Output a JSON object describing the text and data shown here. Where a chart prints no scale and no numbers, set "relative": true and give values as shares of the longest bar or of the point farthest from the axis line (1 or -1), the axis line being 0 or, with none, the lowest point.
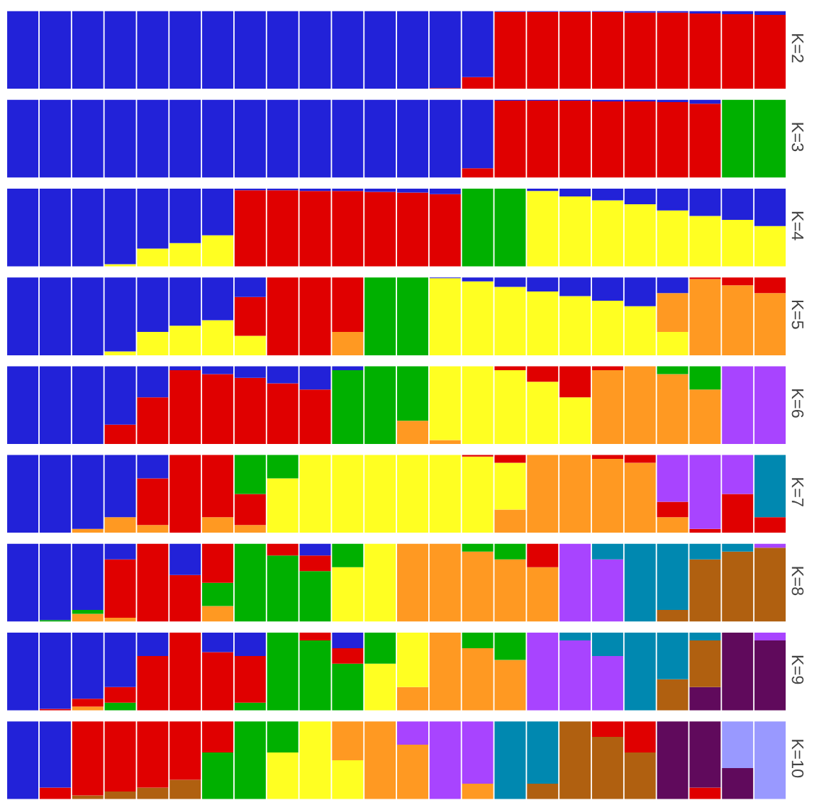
{
  "chart_data": [
    {
      "type": "bar",
      "stacked": true,
      "relative": true,
      "ylabel": "K=2",
      "categories": [
        null,
        null,
        null,
        null,
        null,
        null,
        null,
        null,
        null,
        null,
        null,
        null,
        null,
        null,
        null,
        null,
        null,
        null,
        null,
        null,
        null,
        null,
        null,
        null
      ],
      "series": [
        {
          "color": "#e00000",
          "values": [
            0,
            0,
            0,
            0,
            0,
            0,
            0,
            0,
            0,
            0,
            0,
            0,
            0,
            0.01,
            0.15,
            0.99,
            0.99,
            0.99,
            0.99,
            0.98,
            0.98,
            0.97,
            0.96,
            0.95
          ]
        },
        {
          "color": "#2222d8",
          "values": [
            1,
            1,
            1,
            1,
            1,
            1,
            1,
            1,
            1,
            1,
            1,
            1,
            1,
            0.99,
            0.85,
            0.01,
            0.01,
            0.01,
            0.01,
            0.02,
            0.02,
            0.03,
            0.04,
            0.05
          ]
        }
      ]
    },
    {
      "type": "bar",
      "stacked": true,
      "relative": true,
      "ylabel": "K=3",
      "categories": [
        null,
        null,
        null,
        null,
        null,
        null,
        null,
        null,
        null,
        null,
        null,
        null,
        null,
        null,
        null,
        null,
        null,
        null,
        null,
        null,
        null,
        null,
        null,
        null
      ],
      "series": [
        {
          "color": "#e00000",
          "values": [
            0,
            0,
            0,
            0,
            0,
            0,
            0,
            0,
            0,
            0,
            0,
            0,
            0,
            0,
            0.12,
            0.99,
            0.99,
            0.99,
            0.98,
            0.98,
            0.97,
            0.95,
            0,
            0
          ]
        },
        {
          "color": "#00b000",
          "values": [
            0,
            0,
            0,
            0,
            0,
            0,
            0,
            0,
            0,
            0,
            0,
            0,
            0,
            0,
            0,
            0,
            0,
            0,
            0,
            0,
            0,
            0,
            1,
            1
          ]
        },
        {
          "color": "#2222d8",
          "values": [
            1,
            1,
            1,
            1,
            1,
            1,
            1,
            1,
            1,
            1,
            1,
            1,
            1,
            1,
            0.88,
            0.01,
            0.01,
            0.01,
            0.02,
            0.02,
            0.03,
            0.05,
            0,
            0
          ]
        }
      ]
    },
    {
      "type": "bar",
      "stacked": true,
      "relative": true,
      "ylabel": "K=4",
      "categories": [
        null,
        null,
        null,
        null,
        null,
        null,
        null,
        null,
        null,
        null,
        null,
        null,
        null,
        null,
        null,
        null,
        null,
        null,
        null,
        null,
        null,
        null,
        null,
        null
      ],
      "series": [
        {
          "color": "#ffff22",
          "values": [
            0,
            0,
            0,
            0.03,
            0.23,
            0.3,
            0.4,
            0,
            0,
            0,
            0,
            0,
            0,
            0,
            0,
            0,
            0.97,
            0.9,
            0.85,
            0.8,
            0.72,
            0.65,
            0.6,
            0.52
          ]
        },
        {
          "color": "#e00000",
          "values": [
            0,
            0,
            0,
            0,
            0,
            0,
            0,
            0.98,
            0.98,
            0.97,
            0.97,
            0.96,
            0.95,
            0.93,
            0,
            0,
            0,
            0,
            0,
            0,
            0,
            0,
            0,
            0
          ]
        },
        {
          "color": "#00b000",
          "values": [
            0,
            0,
            0,
            0,
            0,
            0,
            0,
            0,
            0,
            0,
            0,
            0,
            0,
            0,
            1,
            1,
            0,
            0,
            0,
            0,
            0,
            0,
            0,
            0
          ]
        },
        {
          "color": "#2222d8",
          "values": [
            1,
            1,
            1,
            0.97,
            0.77,
            0.7,
            0.6,
            0.02,
            0.02,
            0.03,
            0.03,
            0.04,
            0.05,
            0.07,
            0,
            0,
            0.03,
            0.1,
            0.15,
            0.2,
            0.28,
            0.35,
            0.4,
            0.48
          ]
        }
      ]
    },
    {
      "type": "bar",
      "stacked": true,
      "relative": true,
      "ylabel": "K=5",
      "categories": [
        null,
        null,
        null,
        null,
        null,
        null,
        null,
        null,
        null,
        null,
        null,
        null,
        null,
        null,
        null,
        null,
        null,
        null,
        null,
        null,
        null,
        null,
        null,
        null
      ],
      "series": [
        {
          "color": "#ffff22",
          "values": [
            0,
            0,
            0,
            0.05,
            0.3,
            0.38,
            0.45,
            0.25,
            0,
            0,
            0,
            0,
            0,
            0.99,
            0.95,
            0.88,
            0.82,
            0.76,
            0.7,
            0.63,
            0.3,
            0,
            0,
            0
          ]
        },
        {
          "color": "#ff9922",
          "values": [
            0,
            0,
            0,
            0,
            0,
            0,
            0,
            0,
            0,
            0,
            0.3,
            0,
            0,
            0,
            0,
            0,
            0,
            0,
            0,
            0,
            0.5,
            0.98,
            0.9,
            0.8
          ]
        },
        {
          "color": "#e00000",
          "values": [
            0,
            0,
            0,
            0,
            0,
            0,
            0,
            0.5,
            1,
            1,
            0.7,
            0,
            0,
            0,
            0,
            0,
            0,
            0,
            0,
            0,
            0,
            0.02,
            0.1,
            0.2
          ]
        },
        {
          "color": "#00b000",
          "values": [
            0,
            0,
            0,
            0,
            0,
            0,
            0,
            0,
            0,
            0,
            0,
            1,
            1,
            0,
            0,
            0,
            0,
            0,
            0,
            0,
            0,
            0,
            0,
            0
          ]
        },
        {
          "color": "#2222d8",
          "values": [
            1,
            1,
            1,
            0.95,
            0.7,
            0.62,
            0.55,
            0.25,
            0,
            0,
            0,
            0,
            0,
            0.01,
            0.05,
            0.12,
            0.18,
            0.24,
            0.3,
            0.37,
            0.2,
            0,
            0,
            0
          ]
        }
      ]
    },
    {
      "type": "bar",
      "stacked": true,
      "relative": true,
      "ylabel": "K=6",
      "categories": [
        null,
        null,
        null,
        null,
        null,
        null,
        null,
        null,
        null,
        null,
        null,
        null,
        null,
        null,
        null,
        null,
        null,
        null,
        null,
        null,
        null,
        null,
        null,
        null
      ],
      "series": [
        {
          "color": "#ff9922",
          "values": [
            0,
            0,
            0,
            0,
            0,
            0,
            0,
            0,
            0,
            0,
            0,
            0,
            0.3,
            0.05,
            0,
            0,
            0,
            0,
            0.95,
            1,
            0.9,
            0.7,
            0,
            0
          ]
        },
        {
          "color": "#ffff22",
          "values": [
            0,
            0,
            0,
            0,
            0,
            0,
            0,
            0,
            0,
            0,
            0,
            0,
            0,
            0.95,
            1,
            0.95,
            0.8,
            0.6,
            0,
            0,
            0,
            0,
            0,
            0
          ]
        },
        {
          "color": "#e00000",
          "values": [
            0,
            0,
            0,
            0.25,
            0.6,
            0.95,
            0.9,
            0.85,
            0.78,
            0.7,
            0,
            0,
            0,
            0,
            0,
            0.05,
            0.2,
            0.4,
            0.05,
            0,
            0,
            0,
            0,
            0
          ]
        },
        {
          "color": "#00b000",
          "values": [
            0,
            0,
            0,
            0,
            0,
            0,
            0,
            0,
            0,
            0,
            0.95,
            1,
            0.7,
            0,
            0,
            0,
            0,
            0,
            0,
            0,
            0.1,
            0.3,
            0,
            0
          ]
        },
        {
          "color": "#a844ff",
          "values": [
            0,
            0,
            0,
            0,
            0,
            0,
            0,
            0,
            0,
            0,
            0,
            0,
            0,
            0,
            0,
            0,
            0,
            0,
            0,
            0,
            0,
            0,
            1,
            1
          ]
        },
        {
          "color": "#2222d8",
          "values": [
            1,
            1,
            1,
            0.75,
            0.4,
            0.05,
            0.1,
            0.15,
            0.22,
            0.3,
            0.05,
            0,
            0,
            0,
            0,
            0,
            0,
            0,
            0,
            0,
            0,
            0,
            0,
            0
          ]
        }
      ]
    },
    {
      "type": "bar",
      "stacked": true,
      "relative": true,
      "ylabel": "K=7",
      "categories": [
        null,
        null,
        null,
        null,
        null,
        null,
        null,
        null,
        null,
        null,
        null,
        null,
        null,
        null,
        null,
        null,
        null,
        null,
        null,
        null,
        null,
        null,
        null,
        null
      ],
      "series": [
        {
          "color": "#ff9922",
          "values": [
            0,
            0,
            0.05,
            0.2,
            0.1,
            0,
            0.2,
            0.1,
            0,
            0,
            0,
            0,
            0,
            0,
            0,
            0.3,
            1,
            1,
            0.95,
            0.9,
            0.2,
            0,
            0,
            0
          ]
        },
        {
          "color": "#ffff22",
          "values": [
            0,
            0,
            0,
            0,
            0,
            0,
            0,
            0,
            0.7,
            1,
            1,
            1,
            1,
            1,
            0.98,
            0.6,
            0,
            0,
            0,
            0,
            0,
            0,
            0,
            0
          ]
        },
        {
          "color": "#e00000",
          "values": [
            0,
            0,
            0,
            0,
            0.6,
            1,
            0.8,
            0.4,
            0,
            0,
            0,
            0,
            0,
            0,
            0.02,
            0.1,
            0,
            0,
            0.05,
            0.1,
            0.2,
            0.05,
            0.5,
            0.2
          ]
        },
        {
          "color": "#00b000",
          "values": [
            0,
            0,
            0,
            0,
            0,
            0,
            0,
            0.5,
            0.3,
            0,
            0,
            0,
            0,
            0,
            0,
            0,
            0,
            0,
            0,
            0,
            0,
            0,
            0,
            0
          ]
        },
        {
          "color": "#a844ff",
          "values": [
            0,
            0,
            0,
            0,
            0,
            0,
            0,
            0,
            0,
            0,
            0,
            0,
            0,
            0,
            0,
            0,
            0,
            0,
            0,
            0,
            0.6,
            0.95,
            0.5,
            0
          ]
        },
        {
          "color": "#0088b0",
          "values": [
            0,
            0,
            0,
            0,
            0,
            0,
            0,
            0,
            0,
            0,
            0,
            0,
            0,
            0,
            0,
            0,
            0,
            0,
            0,
            0,
            0,
            0,
            0,
            0.8
          ]
        },
        {
          "color": "#2222d8",
          "values": [
            1,
            1,
            0.95,
            0.8,
            0.3,
            0,
            0,
            0,
            0,
            0,
            0,
            0,
            0,
            0,
            0,
            0,
            0,
            0,
            0,
            0,
            0,
            0,
            0,
            0
          ]
        }
      ]
    },
    {
      "type": "bar",
      "stacked": true,
      "relative": true,
      "ylabel": "K=8",
      "categories": [
        null,
        null,
        null,
        null,
        null,
        null,
        null,
        null,
        null,
        null,
        null,
        null,
        null,
        null,
        null,
        null,
        null,
        null,
        null,
        null,
        null,
        null,
        null,
        null
      ],
      "series": [
        {
          "color": "#b06010",
          "values": [
            0,
            0,
            0,
            0,
            0,
            0,
            0,
            0,
            0,
            0,
            0,
            0,
            0,
            0,
            0,
            0,
            0,
            0,
            0,
            0,
            0.15,
            0.8,
            0.9,
            0.95
          ]
        },
        {
          "color": "#ff9922",
          "values": [
            0,
            0,
            0.1,
            0.05,
            0,
            0,
            0.2,
            0,
            0,
            0,
            0,
            0,
            1,
            1,
            0.9,
            0.8,
            0.7,
            0,
            0,
            0,
            0,
            0,
            0,
            0
          ]
        },
        {
          "color": "#ffff22",
          "values": [
            0,
            0,
            0,
            0,
            0,
            0,
            0,
            0,
            0,
            0,
            0.7,
            1,
            0,
            0,
            0,
            0,
            0,
            0,
            0,
            0,
            0,
            0,
            0,
            0
          ]
        },
        {
          "color": "#00b000",
          "values": [
            0,
            0.02,
            0.05,
            0,
            0,
            0,
            0.3,
            1,
            0.85,
            0.65,
            0.3,
            0,
            0,
            0,
            0.1,
            0.2,
            0,
            0,
            0,
            0,
            0,
            0,
            0,
            0
          ]
        },
        {
          "color": "#e00000",
          "values": [
            0,
            0,
            0,
            0.75,
            1,
            0.6,
            0.5,
            0,
            0.15,
            0.2,
            0,
            0,
            0,
            0,
            0,
            0,
            0.3,
            0,
            0,
            0,
            0,
            0,
            0,
            0
          ]
        },
        {
          "color": "#a844ff",
          "values": [
            0,
            0,
            0,
            0,
            0,
            0,
            0,
            0,
            0,
            0,
            0,
            0,
            0,
            0,
            0,
            0,
            0,
            1,
            0.8,
            0,
            0,
            0,
            0,
            0.05
          ]
        },
        {
          "color": "#0088b0",
          "values": [
            0,
            0,
            0,
            0,
            0,
            0,
            0,
            0,
            0,
            0,
            0,
            0,
            0,
            0,
            0,
            0,
            0,
            0,
            0.2,
            1,
            0.85,
            0.2,
            0.1,
            0
          ]
        },
        {
          "color": "#2222d8",
          "values": [
            1,
            0.98,
            0.85,
            0.2,
            0,
            0.4,
            0,
            0,
            0,
            0.15,
            0,
            0,
            0,
            0,
            0,
            0,
            0,
            0,
            0,
            0,
            0,
            0,
            0,
            0
          ]
        }
      ]
    },
    {
      "type": "bar",
      "stacked": true,
      "relative": true,
      "ylabel": "K=9",
      "categories": [
        null,
        null,
        null,
        null,
        null,
        null,
        null,
        null,
        null,
        null,
        null,
        null,
        null,
        null,
        null,
        null,
        null,
        null,
        null,
        null,
        null,
        null,
        null,
        null
      ],
      "series": [
        {
          "color": "#600a5c",
          "values": [
            0,
            0,
            0,
            0,
            0,
            0,
            0,
            0,
            0,
            0,
            0,
            0,
            0,
            0,
            0,
            0,
            0,
            0,
            0,
            0,
            0,
            0.3,
            1,
            0.9
          ]
        },
        {
          "color": "#b06010",
          "values": [
            0,
            0,
            0,
            0,
            0,
            0,
            0,
            0,
            0,
            0,
            0,
            0,
            0,
            0,
            0,
            0,
            0,
            0,
            0,
            0,
            0.4,
            0.6,
            0,
            0
          ]
        },
        {
          "color": "#ff9922",
          "values": [
            0,
            0,
            0.05,
            0,
            0,
            0,
            0,
            0,
            0,
            0,
            0,
            0,
            0.3,
            1,
            0.8,
            0.65,
            0,
            0,
            0,
            0,
            0,
            0,
            0,
            0
          ]
        },
        {
          "color": "#ffff22",
          "values": [
            0,
            0,
            0,
            0,
            0,
            0,
            0,
            0,
            0,
            0,
            0,
            0.6,
            0.7,
            0,
            0,
            0,
            0,
            0,
            0,
            0,
            0,
            0,
            0,
            0
          ]
        },
        {
          "color": "#00b000",
          "values": [
            0,
            0,
            0,
            0.1,
            0,
            0,
            0,
            0.1,
            1,
            0.9,
            0.6,
            0.4,
            0,
            0,
            0.2,
            0.35,
            0,
            0,
            0,
            0,
            0,
            0,
            0,
            0
          ]
        },
        {
          "color": "#e00000",
          "values": [
            0,
            0.02,
            0.1,
            0.2,
            0.7,
            1,
            0.75,
            0.6,
            0,
            0.1,
            0.2,
            0,
            0,
            0,
            0,
            0,
            0,
            0,
            0,
            0,
            0,
            0,
            0,
            0
          ]
        },
        {
          "color": "#a844ff",
          "values": [
            0,
            0,
            0,
            0,
            0,
            0,
            0,
            0,
            0,
            0,
            0,
            0,
            0,
            0,
            0,
            0,
            1,
            0.9,
            0.7,
            0,
            0,
            0,
            0,
            0.1
          ]
        },
        {
          "color": "#0088b0",
          "values": [
            0,
            0,
            0,
            0,
            0,
            0,
            0,
            0,
            0,
            0,
            0,
            0,
            0,
            0,
            0,
            0,
            0,
            0.1,
            0.3,
            1,
            0.6,
            0.1,
            0,
            0
          ]
        },
        {
          "color": "#2222d8",
          "values": [
            1,
            0.98,
            0.85,
            0.7,
            0.3,
            0,
            0.25,
            0.3,
            0,
            0,
            0.2,
            0,
            0,
            0,
            0,
            0,
            0,
            0,
            0,
            0,
            0,
            0,
            0,
            0
          ]
        }
      ]
    },
    {
      "type": "bar",
      "stacked": true,
      "relative": true,
      "ylabel": "K=10",
      "categories": [
        null,
        null,
        null,
        null,
        null,
        null,
        null,
        null,
        null,
        null,
        null,
        null,
        null,
        null,
        null,
        null,
        null,
        null,
        null,
        null,
        null,
        null,
        null,
        null
      ],
      "series": [
        {
          "color": "#b06010",
          "values": [
            0,
            0,
            0.05,
            0.1,
            0.15,
            0.25,
            0,
            0,
            0,
            0,
            0,
            0,
            0,
            0,
            0,
            0,
            0.2,
            1,
            0.8,
            0.6,
            0,
            0,
            0,
            0
          ]
        },
        {
          "color": "#ffff22",
          "values": [
            0,
            0,
            0,
            0,
            0,
            0,
            0,
            0,
            0.6,
            1,
            0.5,
            0,
            0,
            0,
            0,
            0,
            0,
            0,
            0,
            0,
            0,
            0,
            0,
            0
          ]
        },
        {
          "color": "#ff9922",
          "values": [
            0,
            0,
            0,
            0,
            0,
            0,
            0,
            0,
            0,
            0,
            0.5,
            1,
            0.7,
            0,
            0.2,
            0,
            0,
            0,
            0,
            0,
            0,
            0,
            0,
            0
          ]
        },
        {
          "color": "#a844ff",
          "values": [
            0,
            0,
            0,
            0,
            0,
            0,
            0,
            0,
            0,
            0,
            0,
            0,
            0.3,
            1,
            0.8,
            0,
            0,
            0,
            0,
            0,
            0,
            0,
            0,
            0
          ]
        },
        {
          "color": "#0088b0",
          "values": [
            0,
            0,
            0,
            0,
            0,
            0,
            0,
            0,
            0,
            0,
            0,
            0,
            0,
            0,
            0,
            1,
            0.8,
            0,
            0,
            0,
            0,
            0,
            0,
            0
          ]
        },
        {
          "color": "#00b000",
          "values": [
            0,
            0,
            0,
            0,
            0,
            0,
            0.6,
            1,
            0.4,
            0,
            0,
            0,
            0,
            0,
            0,
            0,
            0,
            0,
            0,
            0,
            0,
            0,
            0,
            0
          ]
        },
        {
          "color": "#e00000",
          "values": [
            0,
            0.15,
            0.95,
            0.9,
            0.85,
            0.75,
            0.4,
            0,
            0,
            0,
            0,
            0,
            0,
            0,
            0,
            0,
            0,
            0,
            0.2,
            0.4,
            0,
            0.15,
            0,
            0
          ]
        },
        {
          "color": "#600a5c",
          "values": [
            0,
            0,
            0,
            0,
            0,
            0,
            0,
            0,
            0,
            0,
            0,
            0,
            0,
            0,
            0,
            0,
            0,
            0,
            0,
            0,
            1,
            0.85,
            0.4,
            0
          ]
        },
        {
          "color": "#9999ff",
          "values": [
            0,
            0,
            0,
            0,
            0,
            0,
            0,
            0,
            0,
            0,
            0,
            0,
            0,
            0,
            0,
            0,
            0,
            0,
            0,
            0,
            0,
            0,
            0.6,
            1
          ]
        },
        {
          "color": "#2222d8",
          "values": [
            1,
            0.85,
            0,
            0,
            0,
            0,
            0,
            0,
            0,
            0,
            0,
            0,
            0,
            0,
            0,
            0,
            0,
            0,
            0,
            0,
            0,
            0,
            0,
            0
          ]
        }
      ]
    }
  ]
}
